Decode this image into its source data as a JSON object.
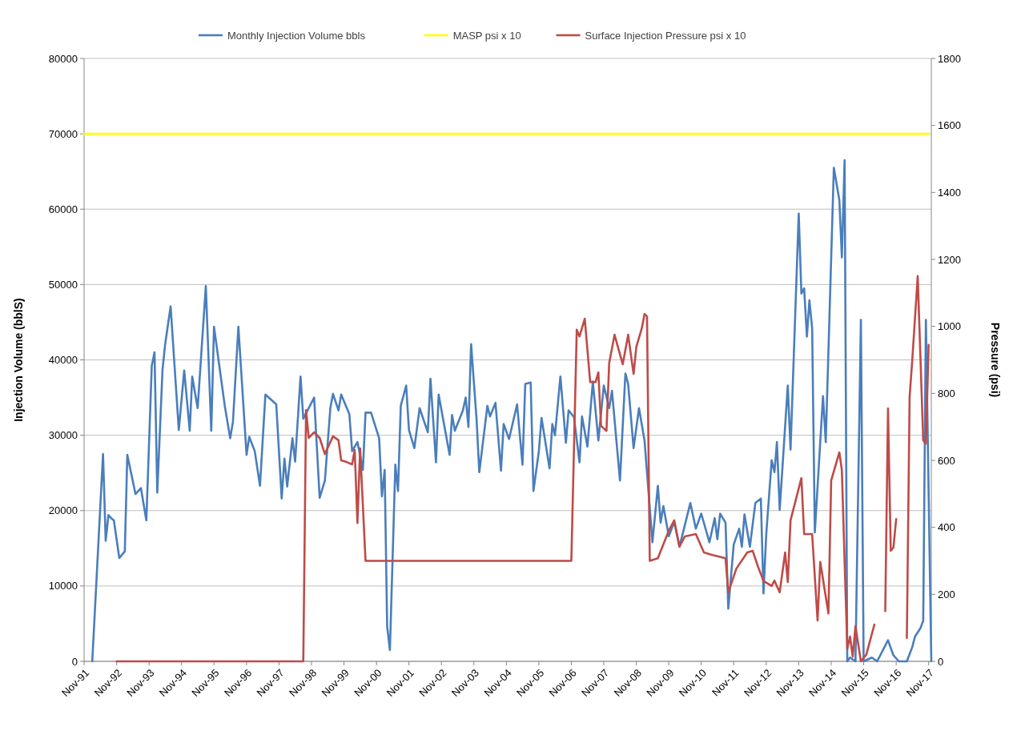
{
  "chart_data": {
    "type": "line",
    "ylabel": "Injection Volume (bblS)",
    "y2label": "Pressure (psi)",
    "legend": "top",
    "grid": "y",
    "line_style": "solid",
    "marker": "none",
    "xlim": [
      "1991-11",
      "2017-12"
    ],
    "xticks": [
      {
        "value": "1991-11",
        "label": "Nov-91"
      },
      {
        "value": "1992-11",
        "label": "Nov-92"
      },
      {
        "value": "1993-11",
        "label": "Nov-93"
      },
      {
        "value": "1994-11",
        "label": "Nov-94"
      },
      {
        "value": "1995-11",
        "label": "Nov-95"
      },
      {
        "value": "1996-11",
        "label": "Nov-96"
      },
      {
        "value": "1997-11",
        "label": "Nov-97"
      },
      {
        "value": "1998-11",
        "label": "Nov-98"
      },
      {
        "value": "1999-11",
        "label": "Nov-99"
      },
      {
        "value": "2000-11",
        "label": "Nov-00"
      },
      {
        "value": "2001-11",
        "label": "Nov-01"
      },
      {
        "value": "2002-11",
        "label": "Nov-02"
      },
      {
        "value": "2003-11",
        "label": "Nov-03"
      },
      {
        "value": "2004-11",
        "label": "Nov-04"
      },
      {
        "value": "2005-11",
        "label": "Nov-05"
      },
      {
        "value": "2006-11",
        "label": "Nov-06"
      },
      {
        "value": "2007-11",
        "label": "Nov-07"
      },
      {
        "value": "2008-11",
        "label": "Nov-08"
      },
      {
        "value": "2009-11",
        "label": "Nov-09"
      },
      {
        "value": "2010-11",
        "label": "Nov-10"
      },
      {
        "value": "2011-11",
        "label": "Nov-11"
      },
      {
        "value": "2012-11",
        "label": "Nov-12"
      },
      {
        "value": "2013-11",
        "label": "Nov-13"
      },
      {
        "value": "2014-11",
        "label": "Nov-14"
      },
      {
        "value": "2015-11",
        "label": "Nov-15"
      },
      {
        "value": "2016-11",
        "label": "Nov-16"
      },
      {
        "value": "2017-11",
        "label": "Nov-17"
      }
    ],
    "ylim": [
      0,
      80000
    ],
    "yticks": [
      0,
      10000,
      20000,
      30000,
      40000,
      50000,
      60000,
      70000,
      80000
    ],
    "y2lim": [
      0,
      1800
    ],
    "y2ticks": [
      0,
      200,
      400,
      600,
      800,
      1000,
      1200,
      1400,
      1600,
      1800
    ],
    "series": [
      {
        "name": "Monthly Injection Volume bbls",
        "color": "#4a7ebb",
        "axis": "y",
        "x": [
          "1992-02",
          "1992-06",
          "1992-07",
          "1992-08",
          "1992-09",
          "1992-10",
          "1992-12",
          "1993-02",
          "1993-03",
          "1993-06",
          "1993-08",
          "1993-10",
          "1993-12",
          "1994-01",
          "1994-02",
          "1994-04",
          "1994-05",
          "1994-07",
          "1994-10",
          "1994-12",
          "1995-02",
          "1995-03",
          "1995-05",
          "1995-08",
          "1995-10",
          "1995-11",
          "1996-03",
          "1996-05",
          "1996-06",
          "1996-08",
          "1996-11",
          "1996-12",
          "1997-02",
          "1997-04",
          "1997-06",
          "1997-10",
          "1997-12",
          "1998-01",
          "1998-02",
          "1998-04",
          "1998-05",
          "1998-07",
          "1998-08",
          "1998-12",
          "1999-02",
          "1999-04",
          "1999-06",
          "1999-07",
          "1999-09",
          "1999-10",
          "2000-01",
          "2000-02",
          "2000-04",
          "2000-06",
          "2000-07",
          "2000-09",
          "2000-12",
          "2001-01",
          "2001-02",
          "2001-03",
          "2001-04",
          "2001-06",
          "2001-07",
          "2001-08",
          "2001-10",
          "2001-11",
          "2002-01",
          "2002-03",
          "2002-06",
          "2002-07",
          "2002-09",
          "2002-10",
          "2003-02",
          "2003-03",
          "2003-04",
          "2003-07",
          "2003-08",
          "2003-09",
          "2003-10",
          "2003-12",
          "2004-01",
          "2004-04",
          "2004-05",
          "2004-07",
          "2004-09",
          "2004-10",
          "2004-12",
          "2005-03",
          "2005-05",
          "2005-06",
          "2005-08",
          "2005-09",
          "2005-11",
          "2005-12",
          "2006-03",
          "2006-04",
          "2006-05",
          "2006-07",
          "2006-09",
          "2006-10",
          "2006-12",
          "2007-02",
          "2007-03",
          "2007-05",
          "2007-07",
          "2007-09",
          "2007-11",
          "2008-01",
          "2008-02",
          "2008-05",
          "2008-07",
          "2008-08",
          "2008-10",
          "2008-12",
          "2009-02",
          "2009-05",
          "2009-07",
          "2009-08",
          "2009-09",
          "2009-11",
          "2010-01",
          "2010-03",
          "2010-07",
          "2010-09",
          "2010-11",
          "2011-02",
          "2011-04",
          "2011-05",
          "2011-06",
          "2011-08",
          "2011-09",
          "2011-11",
          "2012-01",
          "2012-02",
          "2012-03",
          "2012-05",
          "2012-07",
          "2012-09",
          "2012-10",
          "2012-11",
          "2013-01",
          "2013-02",
          "2013-03",
          "2013-04",
          "2013-07",
          "2013-08",
          "2013-11",
          "2013-12",
          "2014-01",
          "2014-02",
          "2014-03",
          "2014-04",
          "2014-05",
          "2014-08",
          "2014-09",
          "2014-12",
          "2015-02",
          "2015-03",
          "2015-04",
          "2015-05",
          "2015-06",
          "2015-08",
          "2015-10",
          "2015-11",
          "2016-02",
          "2016-04",
          "2016-08",
          "2016-10",
          "2016-12",
          "2017-03",
          "2017-05",
          "2017-06",
          "2017-08",
          "2017-09",
          "2017-10",
          "2017-12"
        ],
        "values": [
          0,
          27500,
          16000,
          19400,
          19000,
          18700,
          13700,
          14600,
          27400,
          22200,
          23000,
          18700,
          39200,
          41000,
          22400,
          38700,
          42100,
          47100,
          30700,
          38600,
          30600,
          37800,
          33600,
          49800,
          30600,
          44400,
          33900,
          29600,
          31800,
          44400,
          27400,
          29800,
          27900,
          23300,
          35400,
          34100,
          21600,
          26900,
          23200,
          29600,
          26500,
          37800,
          32200,
          35000,
          21700,
          24000,
          33600,
          35500,
          33300,
          35400,
          32800,
          27900,
          29100,
          25400,
          33000,
          33000,
          29600,
          21900,
          25400,
          4600,
          1500,
          26100,
          22600,
          33900,
          36600,
          30700,
          28300,
          33600,
          30400,
          37500,
          26400,
          35400,
          27400,
          32700,
          30600,
          33300,
          35000,
          31100,
          42100,
          32200,
          25100,
          33900,
          32500,
          34300,
          25300,
          31500,
          29500,
          34100,
          26100,
          36800,
          37000,
          22600,
          27900,
          32300,
          25600,
          31500,
          30000,
          37800,
          29000,
          33300,
          32400,
          26400,
          32500,
          28500,
          37100,
          29300,
          36600,
          33600,
          35900,
          24000,
          38200,
          36800,
          28300,
          33600,
          29300,
          15800,
          23300,
          18400,
          20600,
          16600,
          18500,
          15200,
          21000,
          17600,
          19600,
          15800,
          19000,
          16200,
          19600,
          18400,
          7000,
          15500,
          17600,
          15200,
          19500,
          15200,
          21000,
          21600,
          9000,
          16900,
          26700,
          25100,
          29100,
          20100,
          36600,
          28100,
          59400,
          48800,
          49500,
          43100,
          47900,
          44200,
          17100,
          35200,
          29100,
          65500,
          61200,
          53600,
          66500,
          0,
          500,
          0,
          45300,
          0,
          500,
          0,
          2800,
          800,
          0,
          0,
          1900,
          3300,
          4400,
          5400,
          45300,
          0
        ]
      },
      {
        "name": "MASP psi x 10",
        "color": "#ffff00",
        "axis": "y2",
        "x": [
          "1991-11",
          "2017-11"
        ],
        "values": [
          1575,
          1575
        ]
      },
      {
        "name": "Surface Injection Pressure psi x 10",
        "color": "#be4b48",
        "axis": "y2",
        "x": [
          "1992-11",
          "1998-08",
          "1998-09",
          "1998-10",
          "1998-12",
          "1999-02",
          "1999-04",
          "1999-07",
          "1999-09",
          "1999-10",
          "1999-12",
          "2000-02",
          "2000-03",
          "2000-04",
          "2000-05",
          "2000-07",
          "2006-11",
          "2007-01",
          "2007-02",
          "2007-04",
          "2007-06",
          "2007-08",
          "2007-09",
          "2007-10",
          "2007-12",
          "2008-01",
          "2008-03",
          "2008-06",
          "2008-08",
          "2008-10",
          "2008-11",
          "2009-01",
          "2009-02",
          "2009-03",
          "2009-04",
          "2009-07",
          "2009-11",
          "2010-01",
          "2010-03",
          "2010-05",
          "2010-09",
          "2010-12",
          "2011-03",
          "2011-08",
          "2011-09",
          "2011-12",
          "2012-04",
          "2012-06",
          "2012-08",
          "2012-10",
          "2013-01",
          "2013-02",
          "2013-04",
          "2013-06",
          "2013-07",
          "2013-08",
          "2013-12",
          "2014-01",
          "2014-04",
          "2014-06",
          "2014-07",
          "2014-10",
          "2014-11",
          "2015-02",
          "2015-03",
          "2015-05",
          "2015-06",
          "2015-07",
          "2015-08",
          "2015-10",
          "2015-12",
          "2016-03",
          "2016-05",
          "2016-07",
          "2016-08",
          "2016-09",
          "2016-10",
          "2016-11",
          "2016-12",
          "2017-03",
          "2017-04",
          "2017-05",
          "2017-07",
          "2017-09",
          "2017-10",
          "2017-11"
        ],
        "values": [
          0,
          0,
          750,
          667,
          684,
          667,
          619,
          672,
          660,
          600,
          595,
          588,
          631,
          413,
          636,
          300,
          300,
          990,
          970,
          1023,
          834,
          834,
          863,
          703,
          688,
          891,
          975,
          887,
          975,
          858,
          939,
          994,
          1037,
          1030,
          300,
          308,
          390,
          421,
          343,
          373,
          380,
          325,
          318,
          308,
          206,
          277,
          325,
          330,
          282,
          240,
          225,
          241,
          206,
          325,
          237,
          421,
          547,
          380,
          380,
          122,
          297,
          143,
          540,
          624,
          571,
          38,
          74,
          14,
          105,
          0,
          20,
          110,
          null,
          150,
          755,
          330,
          340,
          425,
          null,
          70,
          790,
          900,
          1150,
          660,
          650,
          945
        ]
      }
    ]
  }
}
